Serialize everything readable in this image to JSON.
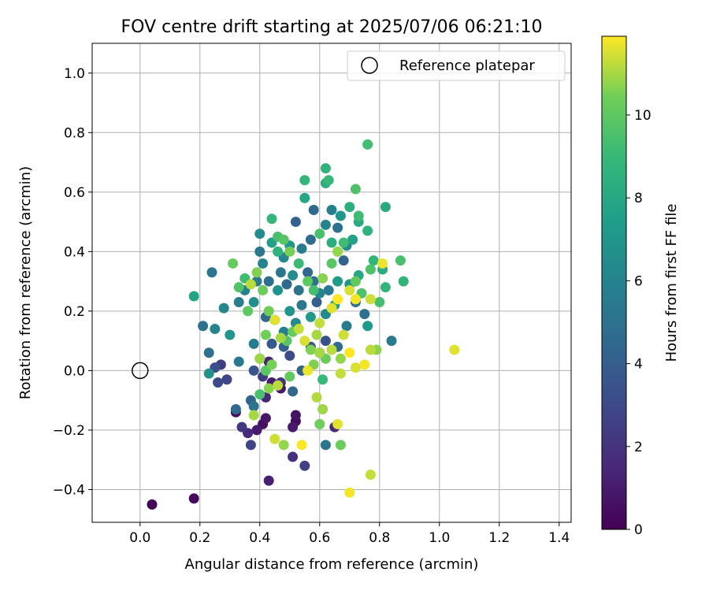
{
  "chart_data": {
    "type": "scatter",
    "title": "FOV centre drift starting at 2025/07/06 06:21:10",
    "xlabel": "Angular distance from reference (arcmin)",
    "ylabel": "Rotation from reference (arcmin)",
    "xlim": [
      -0.16,
      1.44
    ],
    "ylim": [
      -0.51,
      1.1
    ],
    "xticks": [
      0.0,
      0.2,
      0.4,
      0.6,
      0.8,
      1.0,
      1.2,
      1.4
    ],
    "xtick_labels": [
      "0.0",
      "0.2",
      "0.4",
      "0.6",
      "0.8",
      "1.0",
      "1.2",
      "1.4"
    ],
    "yticks": [
      -0.4,
      -0.2,
      0.0,
      0.2,
      0.4,
      0.6,
      0.8,
      1.0
    ],
    "ytick_labels": [
      "−0.4",
      "−0.2",
      "0.0",
      "0.2",
      "0.4",
      "0.6",
      "0.8",
      "1.0"
    ],
    "grid": true,
    "legend": {
      "position": "top-right",
      "entries": [
        "Reference platepar"
      ]
    },
    "reference_point": {
      "x": 0.0,
      "y": 0.0,
      "label": "Reference platepar"
    },
    "colorbar": {
      "label": "Hours from first FF file",
      "colormap": "viridis",
      "range": [
        0,
        11.9
      ],
      "ticks": [
        0,
        2,
        4,
        6,
        8,
        10
      ],
      "tick_labels": [
        "0",
        "2",
        "4",
        "6",
        "8",
        "10"
      ]
    },
    "series": [
      {
        "columns": [
          "x",
          "y",
          "hours"
        ],
        "points": [
          [
            0.04,
            -0.45,
            0.1
          ],
          [
            0.18,
            -0.43,
            0.3
          ],
          [
            0.43,
            -0.37,
            1.2
          ],
          [
            0.55,
            -0.32,
            2.6
          ],
          [
            0.51,
            -0.29,
            1.9
          ],
          [
            0.37,
            -0.25,
            2.7
          ],
          [
            0.39,
            -0.2,
            1.0
          ],
          [
            0.34,
            -0.19,
            2.2
          ],
          [
            0.36,
            -0.21,
            1.6
          ],
          [
            0.41,
            -0.18,
            0.6
          ],
          [
            0.42,
            -0.16,
            0.8
          ],
          [
            0.32,
            -0.14,
            0.5
          ],
          [
            0.51,
            -0.19,
            0.9
          ],
          [
            0.52,
            -0.15,
            0.7
          ],
          [
            0.52,
            -0.17,
            0.4
          ],
          [
            0.65,
            -0.19,
            1.5
          ],
          [
            0.26,
            -0.04,
            3.0
          ],
          [
            0.29,
            -0.03,
            2.8
          ],
          [
            0.25,
            0.01,
            3.3
          ],
          [
            0.27,
            0.02,
            2.5
          ],
          [
            0.38,
            0.0,
            3.5
          ],
          [
            0.41,
            -0.02,
            2.4
          ],
          [
            0.43,
            0.03,
            1.3
          ],
          [
            0.44,
            -0.04,
            1.1
          ],
          [
            0.47,
            -0.06,
            0.9
          ],
          [
            0.42,
            -0.09,
            1.5
          ],
          [
            0.37,
            -0.1,
            4.3
          ],
          [
            0.47,
            -0.04,
            2.0
          ],
          [
            0.51,
            -0.07,
            4.4
          ],
          [
            0.32,
            -0.13,
            4.6
          ],
          [
            0.38,
            -0.12,
            5.1
          ],
          [
            0.23,
            -0.01,
            6.8
          ],
          [
            0.23,
            0.06,
            4.9
          ],
          [
            0.33,
            0.03,
            5.4
          ],
          [
            0.38,
            0.09,
            5.6
          ],
          [
            0.4,
            0.04,
            7.3
          ],
          [
            0.44,
            0.09,
            3.8
          ],
          [
            0.48,
            0.08,
            4.1
          ],
          [
            0.5,
            0.05,
            3.0
          ],
          [
            0.54,
            0.0,
            4.2
          ],
          [
            0.57,
            0.08,
            3.6
          ],
          [
            0.6,
            0.06,
            2.9
          ],
          [
            0.62,
            0.1,
            3.4
          ],
          [
            0.66,
            0.08,
            4.7
          ],
          [
            0.62,
            -0.25,
            5.2
          ],
          [
            0.84,
            0.1,
            5.5
          ],
          [
            0.21,
            0.15,
            5.0
          ],
          [
            0.25,
            0.14,
            6.1
          ],
          [
            0.3,
            0.12,
            7.0
          ],
          [
            0.28,
            0.21,
            6.2
          ],
          [
            0.33,
            0.23,
            5.8
          ],
          [
            0.35,
            0.27,
            5.9
          ],
          [
            0.38,
            0.23,
            6.6
          ],
          [
            0.42,
            0.18,
            4.5
          ],
          [
            0.45,
            0.17,
            4.8
          ],
          [
            0.48,
            0.13,
            5.7
          ],
          [
            0.5,
            0.2,
            6.9
          ],
          [
            0.52,
            0.16,
            6.4
          ],
          [
            0.54,
            0.22,
            5.3
          ],
          [
            0.57,
            0.18,
            7.1
          ],
          [
            0.59,
            0.23,
            4.0
          ],
          [
            0.62,
            0.19,
            6.3
          ],
          [
            0.65,
            0.22,
            7.5
          ],
          [
            0.69,
            0.15,
            5.6
          ],
          [
            0.72,
            0.23,
            4.9
          ],
          [
            0.75,
            0.19,
            5.0
          ],
          [
            0.76,
            0.15,
            7.2
          ],
          [
            0.24,
            0.33,
            5.2
          ],
          [
            0.18,
            0.25,
            7.8
          ],
          [
            0.39,
            0.3,
            5.7
          ],
          [
            0.41,
            0.36,
            6.0
          ],
          [
            0.43,
            0.3,
            4.8
          ],
          [
            0.46,
            0.27,
            6.7
          ],
          [
            0.47,
            0.33,
            5.4
          ],
          [
            0.49,
            0.29,
            4.6
          ],
          [
            0.51,
            0.32,
            6.5
          ],
          [
            0.53,
            0.27,
            5.1
          ],
          [
            0.56,
            0.33,
            4.4
          ],
          [
            0.58,
            0.3,
            5.0
          ],
          [
            0.6,
            0.26,
            6.1
          ],
          [
            0.63,
            0.27,
            5.5
          ],
          [
            0.66,
            0.3,
            7.4
          ],
          [
            0.68,
            0.37,
            4.3
          ],
          [
            0.7,
            0.29,
            6.8
          ],
          [
            0.73,
            0.32,
            8.0
          ],
          [
            0.4,
            0.46,
            6.5
          ],
          [
            0.4,
            0.4,
            5.3
          ],
          [
            0.44,
            0.43,
            7.6
          ],
          [
            0.46,
            0.4,
            8.6
          ],
          [
            0.48,
            0.38,
            6.2
          ],
          [
            0.5,
            0.42,
            7.0
          ],
          [
            0.52,
            0.5,
            4.2
          ],
          [
            0.54,
            0.41,
            5.6
          ],
          [
            0.57,
            0.44,
            4.7
          ],
          [
            0.58,
            0.54,
            4.5
          ],
          [
            0.6,
            0.46,
            9.5
          ],
          [
            0.62,
            0.49,
            6.0
          ],
          [
            0.64,
            0.43,
            8.4
          ],
          [
            0.66,
            0.48,
            5.0
          ],
          [
            0.69,
            0.42,
            6.4
          ],
          [
            0.71,
            0.44,
            7.7
          ],
          [
            0.73,
            0.5,
            8.2
          ],
          [
            0.62,
            0.68,
            8.6
          ],
          [
            0.62,
            0.63,
            8.3
          ],
          [
            0.63,
            0.64,
            9.0
          ],
          [
            0.55,
            0.58,
            7.9
          ],
          [
            0.55,
            0.64,
            8.8
          ],
          [
            0.76,
            0.76,
            9.3
          ],
          [
            0.72,
            0.61,
            9.6
          ],
          [
            0.82,
            0.55,
            8.1
          ],
          [
            0.64,
            0.54,
            5.8
          ],
          [
            0.67,
            0.52,
            7.0
          ],
          [
            0.7,
            0.55,
            8.4
          ],
          [
            0.73,
            0.52,
            9.2
          ],
          [
            0.76,
            0.47,
            8.6
          ],
          [
            0.78,
            0.37,
            8.8
          ],
          [
            0.77,
            0.34,
            9.6
          ],
          [
            0.81,
            0.34,
            8.2
          ],
          [
            0.87,
            0.37,
            9.5
          ],
          [
            0.88,
            0.3,
            8.7
          ],
          [
            0.82,
            0.28,
            8.8
          ],
          [
            0.8,
            0.23,
            9.4
          ],
          [
            0.77,
            0.24,
            11.4
          ],
          [
            0.81,
            0.36,
            11.7
          ],
          [
            0.31,
            0.36,
            10.2
          ],
          [
            0.33,
            0.28,
            9.7
          ],
          [
            0.35,
            0.31,
            9.2
          ],
          [
            0.36,
            0.2,
            10.0
          ],
          [
            0.37,
            0.29,
            11.2
          ],
          [
            0.39,
            0.33,
            10.6
          ],
          [
            0.41,
            0.27,
            10.3
          ],
          [
            0.43,
            0.2,
            10.4
          ],
          [
            0.44,
            0.51,
            8.9
          ],
          [
            0.46,
            0.45,
            9.4
          ],
          [
            0.48,
            0.44,
            9.8
          ],
          [
            0.5,
            0.4,
            10.5
          ],
          [
            0.53,
            0.36,
            9.1
          ],
          [
            0.56,
            0.3,
            10.0
          ],
          [
            0.58,
            0.27,
            9.4
          ],
          [
            0.61,
            0.31,
            10.7
          ],
          [
            0.64,
            0.36,
            9.9
          ],
          [
            0.66,
            0.4,
            10.8
          ],
          [
            0.68,
            0.43,
            9.2
          ],
          [
            0.7,
            0.27,
            11.5
          ],
          [
            0.72,
            0.3,
            10.1
          ],
          [
            0.74,
            0.26,
            9.6
          ],
          [
            0.72,
            0.24,
            11.8
          ],
          [
            0.66,
            0.24,
            11.9
          ],
          [
            0.64,
            0.21,
            11.6
          ],
          [
            0.6,
            0.16,
            11.3
          ],
          [
            0.59,
            0.12,
            11.0
          ],
          [
            0.57,
            0.07,
            10.6
          ],
          [
            0.55,
            0.1,
            11.5
          ],
          [
            0.53,
            0.14,
            11.3
          ],
          [
            0.51,
            0.13,
            10.2
          ],
          [
            0.49,
            0.1,
            9.8
          ],
          [
            0.47,
            0.11,
            11.0
          ],
          [
            0.45,
            0.17,
            11.6
          ],
          [
            0.42,
            0.12,
            10.4
          ],
          [
            0.4,
            0.04,
            10.9
          ],
          [
            0.42,
            0.0,
            9.9
          ],
          [
            0.44,
            0.02,
            10.5
          ],
          [
            0.46,
            -0.05,
            11.2
          ],
          [
            0.43,
            -0.06,
            10.7
          ],
          [
            0.4,
            -0.08,
            9.5
          ],
          [
            0.38,
            -0.15,
            11.0
          ],
          [
            0.45,
            -0.23,
            11.4
          ],
          [
            0.48,
            -0.25,
            10.8
          ],
          [
            0.54,
            -0.25,
            11.9
          ],
          [
            0.59,
            -0.09,
            11.1
          ],
          [
            0.61,
            -0.13,
            10.9
          ],
          [
            0.6,
            -0.18,
            10.4
          ],
          [
            0.66,
            -0.18,
            11.6
          ],
          [
            0.67,
            -0.25,
            10.3
          ],
          [
            0.7,
            -0.41,
            11.8
          ],
          [
            0.77,
            -0.35,
            11.3
          ],
          [
            0.56,
            0.0,
            11.7
          ],
          [
            0.58,
            0.02,
            10.6
          ],
          [
            0.6,
            0.06,
            11.0
          ],
          [
            0.62,
            0.04,
            10.3
          ],
          [
            0.64,
            0.07,
            11.2
          ],
          [
            0.67,
            0.04,
            10.8
          ],
          [
            0.68,
            0.12,
            11.4
          ],
          [
            0.7,
            0.06,
            11.9
          ],
          [
            0.72,
            0.01,
            11.5
          ],
          [
            0.75,
            0.02,
            11.8
          ],
          [
            0.77,
            0.07,
            11.2
          ],
          [
            0.79,
            0.07,
            10.7
          ],
          [
            0.67,
            -0.01,
            11.3
          ],
          [
            0.61,
            -0.03,
            9.0
          ],
          [
            1.05,
            0.07,
            11.6
          ],
          [
            0.5,
            -0.02,
            10.1
          ]
        ]
      }
    ]
  }
}
